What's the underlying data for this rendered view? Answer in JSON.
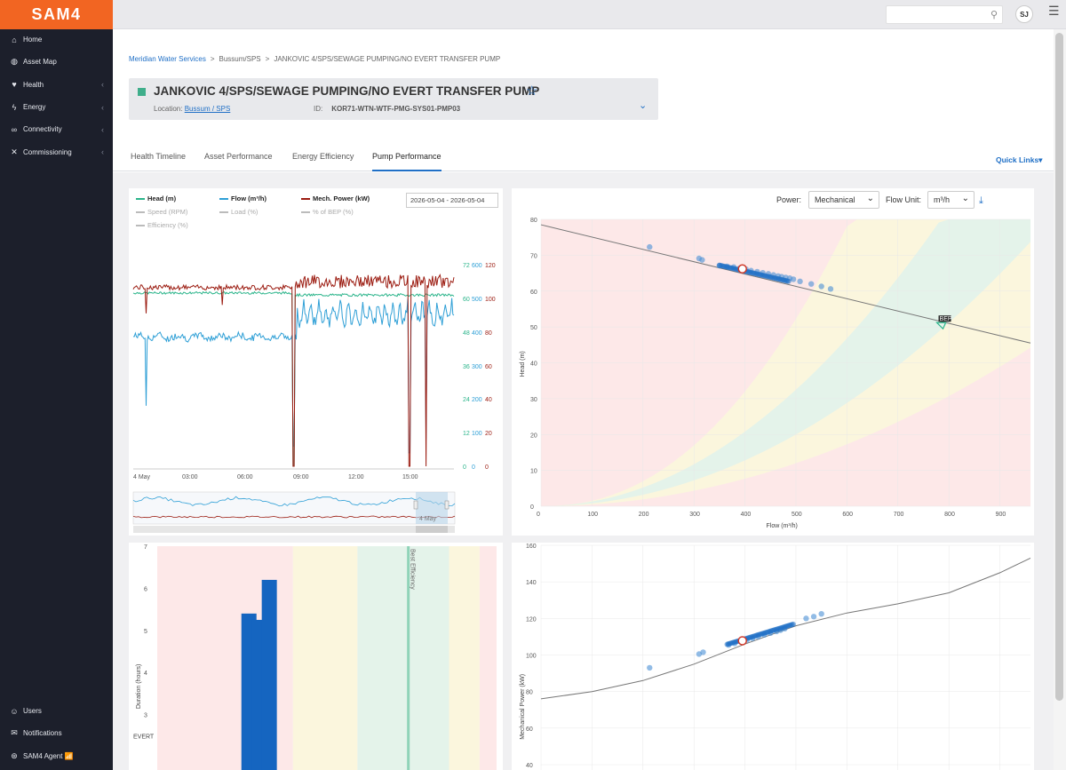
{
  "app": {
    "logo": "SAM4"
  },
  "sidebar": {
    "items": [
      {
        "label": "Home",
        "icon": "home-icon",
        "glyph": "⌂",
        "chevron": ""
      },
      {
        "label": "Asset Map",
        "icon": "globe-icon",
        "glyph": "◍",
        "chevron": ""
      },
      {
        "label": "Health",
        "icon": "heart-icon",
        "glyph": "♥",
        "chevron": "‹"
      },
      {
        "label": "Energy",
        "icon": "bolt-icon",
        "glyph": "ϟ",
        "chevron": "‹"
      },
      {
        "label": "Connectivity",
        "icon": "link-icon",
        "glyph": "∞",
        "chevron": "‹"
      },
      {
        "label": "Commissioning",
        "icon": "tools-icon",
        "glyph": "✕",
        "chevron": "‹"
      }
    ],
    "bottom": [
      {
        "label": "Users",
        "icon": "users-icon",
        "glyph": "☺"
      },
      {
        "label": "Notifications",
        "icon": "mail-icon",
        "glyph": "✉"
      },
      {
        "label": "SAM4 Agent 📶",
        "icon": "agent-icon",
        "glyph": "⊛"
      }
    ]
  },
  "topbar": {
    "avatar_initials": "SJ"
  },
  "breadcrumb": [
    "Meridian Water Services",
    "Bussum/SPS",
    "JANKOVIC 4/SPS/SEWAGE PUMPING/NO EVERT TRANSFER PUMP"
  ],
  "asset": {
    "title": "JANKOVIC 4/SPS/SEWAGE PUMPING/NO EVERT TRANSFER PUMP",
    "location_label": "Location:",
    "location": "Bussum / SPS",
    "id_label": "ID:",
    "id": "KOR71-WTN-WTF-PMG-SYS01-PMP03",
    "status_color": "#3fae8b"
  },
  "tabs": [
    "Health Timeline",
    "Asset Performance",
    "Energy Efficiency",
    "Pump Performance"
  ],
  "active_tab": "Pump Performance",
  "quick_links": "Quick Links▾",
  "timeseries": {
    "legend": [
      {
        "label": "Head (m)",
        "color": "#2ab48a",
        "active": true
      },
      {
        "label": "Flow (m³/h)",
        "color": "#2e9fd6",
        "active": true
      },
      {
        "label": "Mech. Power (kW)",
        "color": "#9b1b10",
        "active": true
      },
      {
        "label": "Speed (RPM)",
        "color": "#bbbbbb",
        "active": false
      },
      {
        "label": "Load (%)",
        "color": "#bbbbbb",
        "active": false
      },
      {
        "label": "% of BEP (%)",
        "color": "#bbbbbb",
        "active": false
      },
      {
        "label": "Efficiency (%)",
        "color": "#bbbbbb",
        "active": false
      }
    ],
    "date_range": "2026-05-04 - 2026-05-04",
    "x_ticks": [
      "4 May",
      "03:00",
      "06:00",
      "09:00",
      "12:00",
      "15:00"
    ],
    "head_ticks": [
      "72",
      "60",
      "48",
      "36",
      "24",
      "12",
      "0"
    ],
    "flow_ticks": [
      "600",
      "500",
      "400",
      "300",
      "200",
      "100",
      "0"
    ],
    "power_ticks": [
      "120",
      "100",
      "80",
      "60",
      "40",
      "20",
      "0"
    ],
    "navigator_label": "4 May"
  },
  "controls": {
    "power_label": "Power:",
    "power_value": "Mechanical",
    "flow_unit_label": "Flow Unit:",
    "flow_unit_value": "m³/h"
  },
  "chart_data": [
    {
      "type": "scatter",
      "xlabel": "Flow (m³/h)",
      "ylabel": "Head (m)",
      "xlim": [
        0,
        960
      ],
      "ylim": [
        0,
        80
      ],
      "x_ticks": [
        0,
        100,
        200,
        300,
        400,
        500,
        600,
        700,
        800,
        900
      ],
      "y_ticks": [
        0,
        10,
        20,
        30,
        40,
        50,
        60,
        70,
        80
      ],
      "curve": {
        "x": [
          0,
          960
        ],
        "y": [
          78.5,
          45.5
        ]
      },
      "bep": {
        "label": "BEP",
        "x": 785,
        "y": 52.2
      },
      "operating_point": {
        "x": 395,
        "y": 66.2
      },
      "points_x": [
        213,
        310,
        316,
        350,
        365,
        378,
        390,
        402,
        412,
        424,
        435,
        446,
        456,
        465,
        472,
        480,
        488,
        495,
        508,
        530,
        550,
        568
      ],
      "points_y": [
        72.3,
        69.1,
        68.7,
        67.1,
        66.9,
        66.7,
        66.4,
        66.1,
        65.7,
        65.4,
        65.1,
        64.8,
        64.5,
        64.2,
        64.0,
        63.8,
        63.6,
        63.3,
        62.7,
        62.0,
        61.3,
        60.6
      ]
    },
    {
      "type": "bar",
      "ylabel": "Duration (hours)",
      "ylim": [
        0,
        7
      ],
      "y_ticks": [
        3,
        4,
        5,
        6,
        7
      ],
      "category_label": "EVERT",
      "bep_label": "Best Efficiency",
      "bars": [
        {
          "x": 0.248,
          "value": 5.4
        },
        {
          "x": 0.278,
          "value": 5.25
        },
        {
          "x": 0.308,
          "value": 6.2
        }
      ]
    },
    {
      "type": "scatter",
      "ylabel": "Mechanical Power (kW)",
      "xlim": [
        0,
        960
      ],
      "ylim": [
        40,
        160
      ],
      "y_ticks": [
        40,
        60,
        80,
        100,
        120,
        140,
        160
      ],
      "curve": {
        "x": [
          0,
          100,
          200,
          300,
          400,
          500,
          600,
          700,
          800,
          900,
          960
        ],
        "y": [
          76,
          80,
          86,
          95,
          106,
          116,
          123,
          128,
          134,
          145,
          153
        ]
      },
      "operating_point": {
        "x": 395,
        "y": 107.8
      },
      "points_x": [
        213,
        310,
        318,
        368,
        380,
        392,
        404,
        415,
        426,
        438,
        450,
        462,
        470,
        478,
        520,
        535,
        550
      ],
      "points_y": [
        93,
        100.5,
        101.5,
        105.5,
        106.3,
        107.2,
        108.2,
        109.1,
        110.0,
        111.0,
        112.0,
        112.9,
        113.6,
        114.4,
        120,
        121,
        122.5
      ]
    }
  ]
}
